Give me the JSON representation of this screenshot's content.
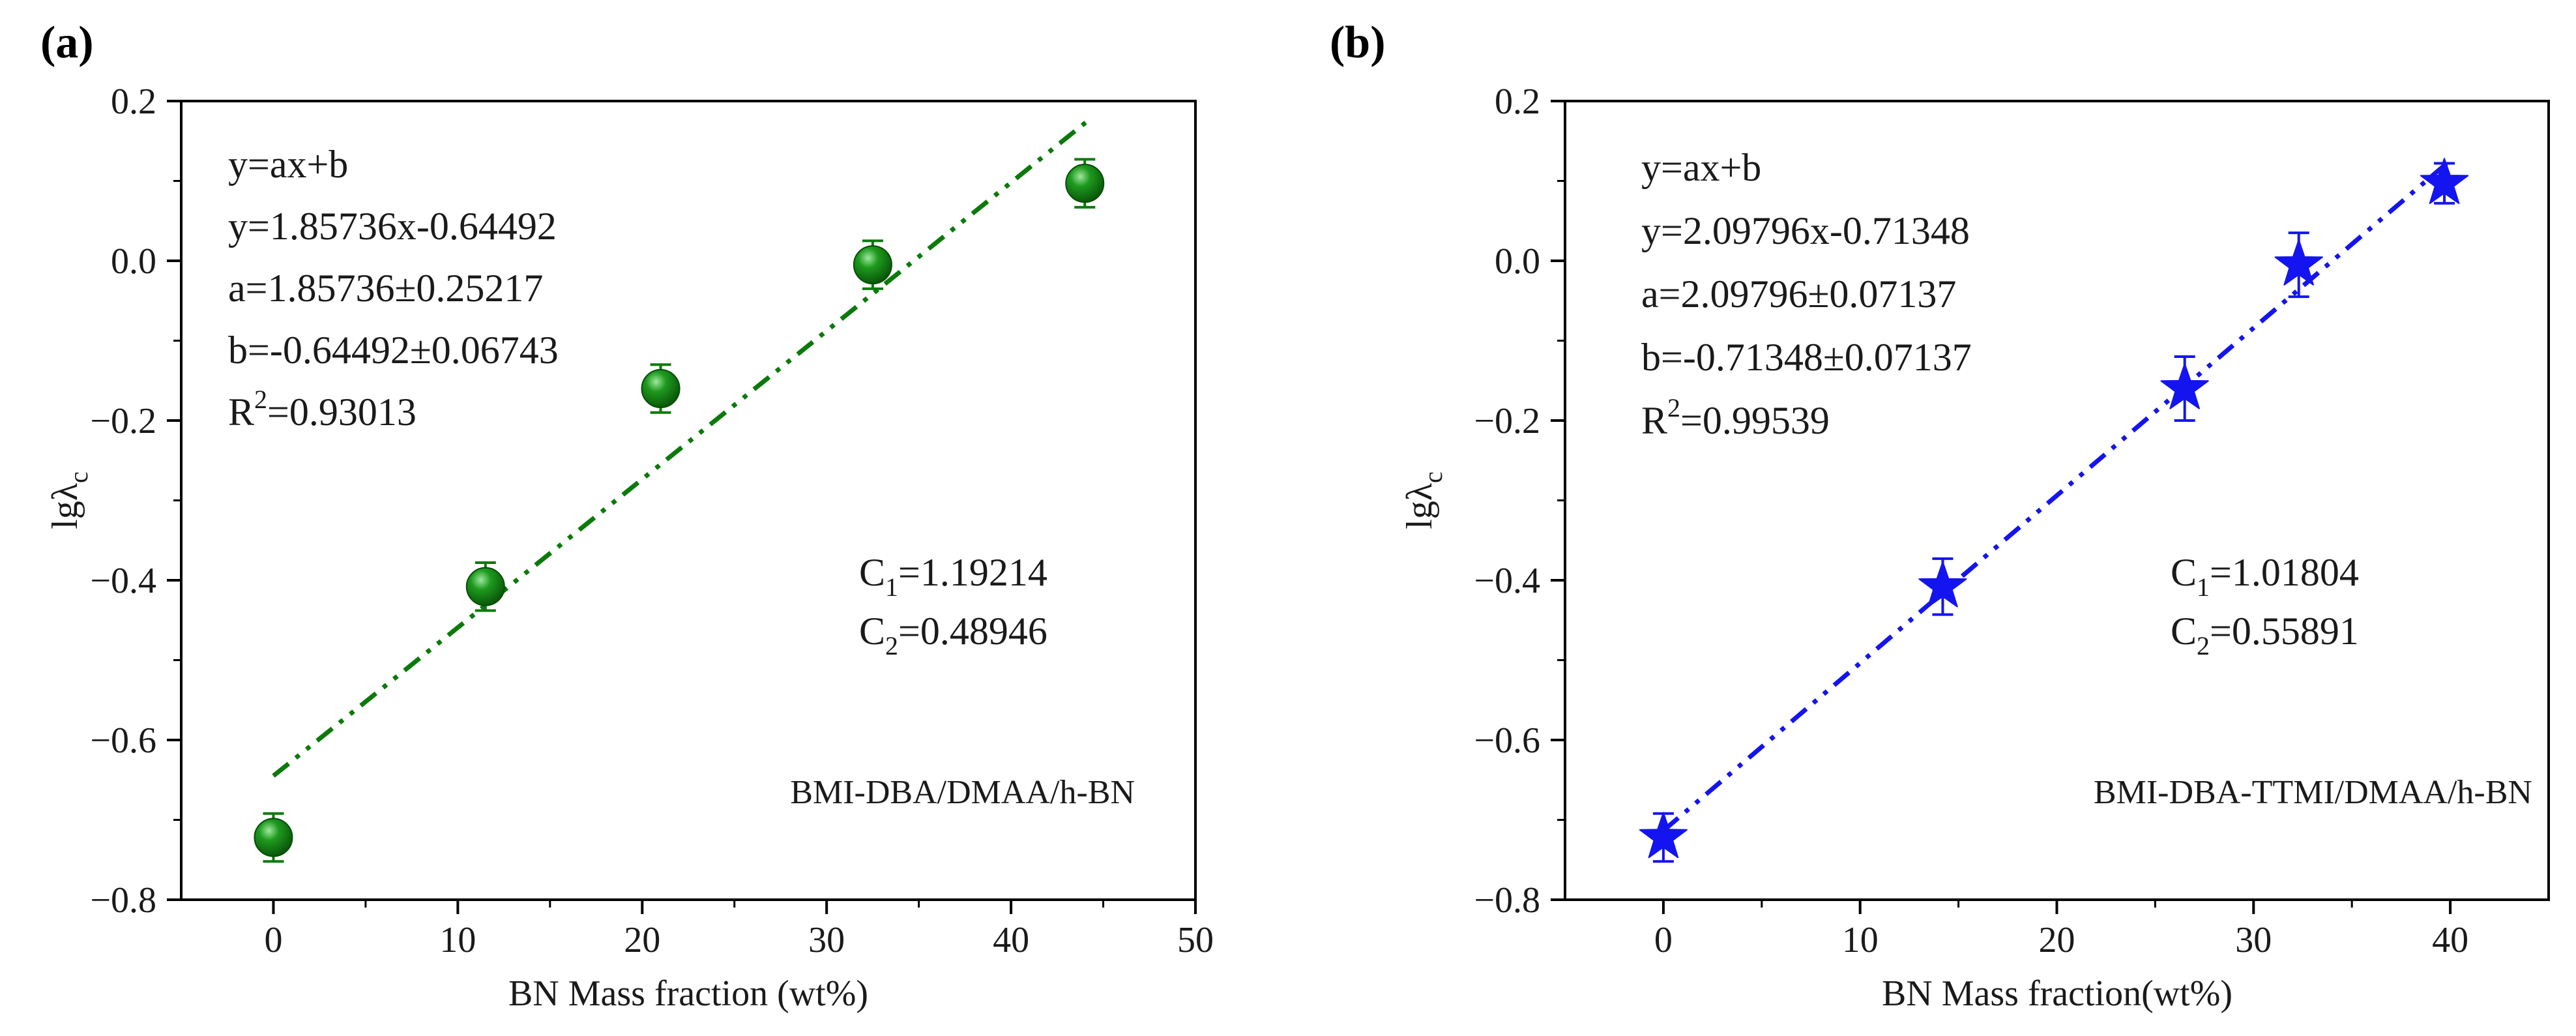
{
  "chart_data": [
    {
      "panel_label": "(a)",
      "type": "scatter",
      "xlabel": "BN Mass fraction (wt%)",
      "ylabel_main": "lgλ",
      "ylabel_sub": "c",
      "xlim": [
        -5,
        50
      ],
      "ylim": [
        -0.8,
        0.2
      ],
      "xticks": [
        0,
        10,
        20,
        30,
        40,
        50
      ],
      "xtick_labels": [
        "0",
        "10",
        "20",
        "30",
        "40",
        "50"
      ],
      "yticks": [
        -0.8,
        -0.6,
        -0.4,
        -0.2,
        0.0,
        0.2
      ],
      "ytick_labels": [
        "−0.8",
        "−0.6",
        "−0.4",
        "−0.2",
        "0.0",
        "0.2"
      ],
      "marker": "circle",
      "color": "#0b7a0b",
      "points": [
        {
          "x": 0,
          "y": -0.722,
          "err": 0.03
        },
        {
          "x": 11.5,
          "y": -0.408,
          "err": 0.03
        },
        {
          "x": 21,
          "y": -0.16,
          "err": 0.03
        },
        {
          "x": 32.5,
          "y": -0.005,
          "err": 0.03
        },
        {
          "x": 44,
          "y": 0.097,
          "err": 0.03
        }
      ],
      "fit": {
        "slope": 1.85736,
        "intercept": -0.64492,
        "x_range": [
          0,
          44.2
        ],
        "style": "dash-dot-dot"
      },
      "equation_lines": [
        {
          "main": "y=ax+b",
          "sup": ""
        },
        {
          "main": "y=1.85736x-0.64492",
          "sup": ""
        },
        {
          "main": "a=1.85736±0.25217",
          "sup": ""
        },
        {
          "main": "b=-0.64492±0.06743",
          "sup": ""
        }
      ],
      "r2": {
        "prefix": "R",
        "sup": "2",
        "value": "=0.93013"
      },
      "constants": [
        {
          "letter": "C",
          "sub": "1",
          "value": "=1.19214"
        },
        {
          "letter": "C",
          "sub": "2",
          "value": "=0.48946"
        }
      ],
      "series_label": "BMI-DBA/DMAA/h-BN"
    },
    {
      "panel_label": "(b)",
      "type": "scatter",
      "xlabel": "BN Mass fraction(wt%)",
      "ylabel_main": "lgλ",
      "ylabel_sub": "c",
      "xlim": [
        -5,
        45
      ],
      "ylim": [
        -0.8,
        0.2
      ],
      "xticks": [
        0,
        10,
        20,
        30,
        40
      ],
      "xtick_labels": [
        "0",
        "10",
        "20",
        "30",
        "40"
      ],
      "yticks": [
        -0.8,
        -0.6,
        -0.4,
        -0.2,
        0.0,
        0.2
      ],
      "ytick_labels": [
        "−0.8",
        "−0.6",
        "−0.4",
        "−0.2",
        "0.0",
        "0.2"
      ],
      "marker": "star",
      "color": "#1414f0",
      "points": [
        {
          "x": 0,
          "y": -0.722,
          "err": 0.03
        },
        {
          "x": 14.2,
          "y": -0.408,
          "err": 0.035
        },
        {
          "x": 26.5,
          "y": -0.16,
          "err": 0.04
        },
        {
          "x": 32.3,
          "y": -0.005,
          "err": 0.04
        },
        {
          "x": 39.7,
          "y": 0.097,
          "err": 0.025
        }
      ],
      "fit": {
        "slope": 2.09796,
        "intercept": -0.71348,
        "x_range": [
          0,
          40
        ],
        "style": "dash-dot-dot"
      },
      "equation_lines": [
        {
          "main": "y=ax+b",
          "sup": ""
        },
        {
          "main": "y=2.09796x-0.71348",
          "sup": ""
        },
        {
          "main": "a=2.09796±0.07137",
          "sup": ""
        },
        {
          "main": "b=-0.71348±0.07137",
          "sup": ""
        }
      ],
      "r2": {
        "prefix": "R",
        "sup": "2",
        "value": "=0.99539"
      },
      "constants": [
        {
          "letter": "C",
          "sub": "1",
          "value": "=1.01804"
        },
        {
          "letter": "C",
          "sub": "2",
          "value": "=0.55891"
        }
      ],
      "series_label": "BMI-DBA-TTMI/DMAA/h-BN"
    }
  ]
}
